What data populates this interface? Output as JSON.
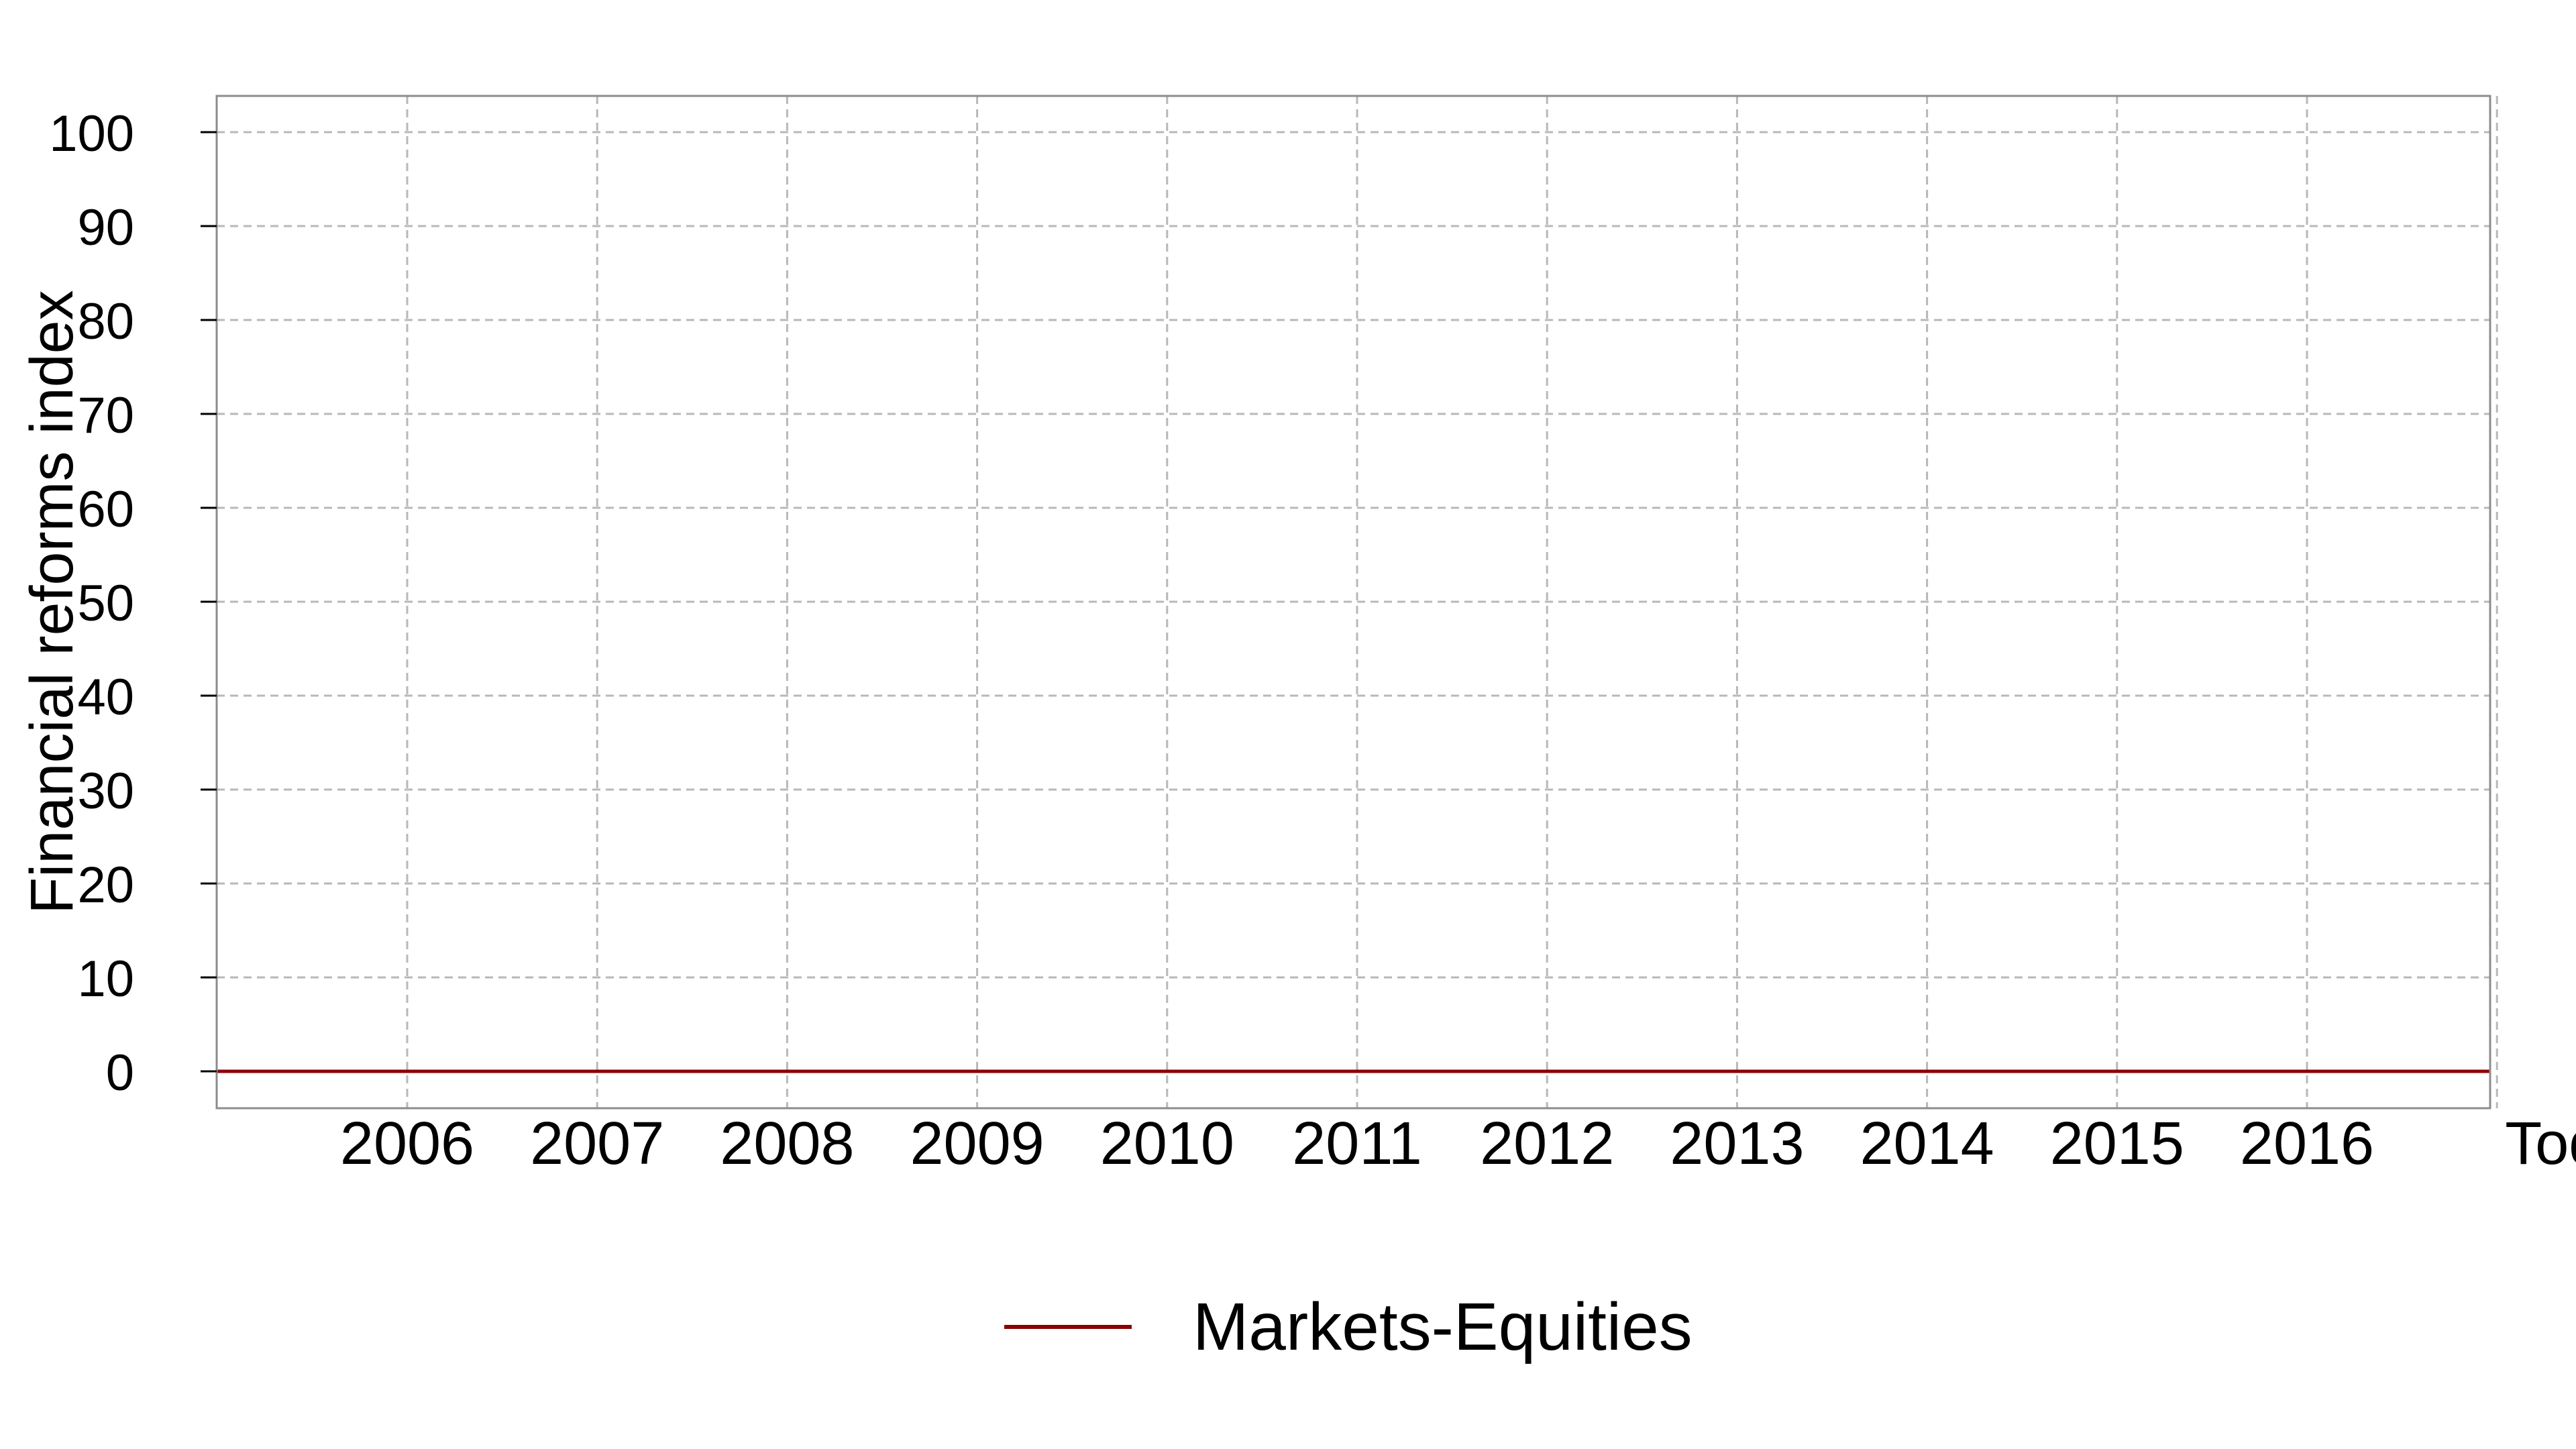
{
  "chart_data": {
    "type": "line",
    "title": "",
    "xlabel": "",
    "ylabel": "Financial reforms index",
    "x_ticks": [
      "2006",
      "2007",
      "2008",
      "2009",
      "2010",
      "2011",
      "2012",
      "2013",
      "2014",
      "2015",
      "2016",
      "Today"
    ],
    "y_ticks": [
      0,
      10,
      20,
      30,
      40,
      50,
      60,
      70,
      80,
      90,
      100
    ],
    "ylim": [
      0,
      100
    ],
    "x": [
      "2005",
      "2006",
      "2007",
      "2008",
      "2009",
      "2010",
      "2011",
      "2012",
      "2013",
      "2014",
      "2015",
      "2016",
      "Today"
    ],
    "grid": true,
    "legend_position": "bottom",
    "series": [
      {
        "name": "Markets-Equities",
        "color": "#8b0000",
        "values": [
          0,
          0,
          0,
          0,
          0,
          0,
          0,
          0,
          0,
          0,
          0,
          0,
          0
        ]
      }
    ]
  }
}
